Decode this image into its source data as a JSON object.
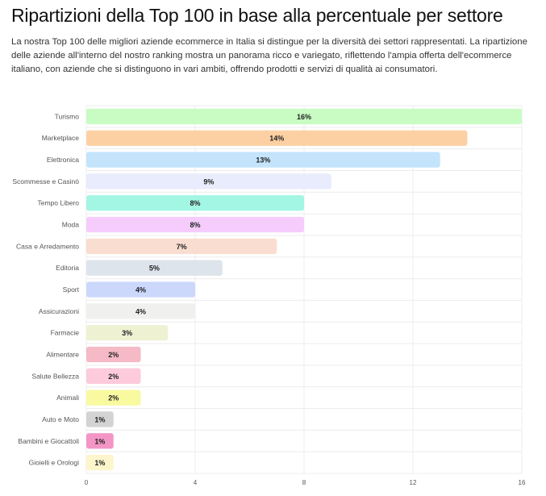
{
  "title": "Ripartizioni della Top 100 in base alla percentuale per settore",
  "description": "La nostra Top 100 delle migliori aziende ecommerce in Italia si distingue per la diversità dei settori rappresentati. La ripartizione delle aziende all'interno del nostro ranking mostra un panorama ricco e variegato, riflettendo l'ampia offerta dell'ecommerce italiano, con aziende che si distinguono in vari ambiti, offrendo prodotti e servizi di qualità ai consumatori.",
  "chart_data": {
    "type": "bar",
    "orientation": "horizontal",
    "title": "",
    "xlabel": "",
    "ylabel": "",
    "xlim": [
      0,
      16
    ],
    "xticks": [
      0,
      4,
      8,
      12,
      16
    ],
    "grid": "vertical",
    "legend": "none",
    "value_suffix": "%",
    "categories": [
      "Turismo",
      "Marketplace",
      "Elettronica",
      "Scommesse e Casinò",
      "Tempo Libero",
      "Moda",
      "Casa e Arredamento",
      "Editoria",
      "Sport",
      "Assicurazioni",
      "Farmacie",
      "Alimentare",
      "Salute Bellezza",
      "Animali",
      "Auto e Moto",
      "Bambini e Giocattoli",
      "Gioielli e Orologi"
    ],
    "values": [
      16,
      14,
      13,
      9,
      8,
      8,
      7,
      5,
      4,
      4,
      3,
      2,
      2,
      2,
      1,
      1,
      1
    ],
    "colors": [
      "#c8fcc3",
      "#fdd0a4",
      "#c4e4fc",
      "#e8ecfc",
      "#a4f6e4",
      "#f5ccfc",
      "#f9ddd1",
      "#dde4eb",
      "#cbd8fc",
      "#f0f0ef",
      "#eef2d3",
      "#f6b9c6",
      "#fdcbdb",
      "#f9f9a0",
      "#d3d3d3",
      "#f396c6",
      "#fdf6cc"
    ]
  }
}
